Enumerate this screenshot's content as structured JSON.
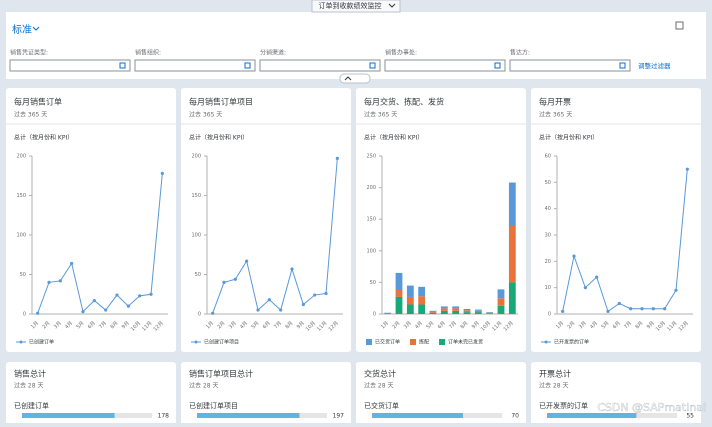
{
  "header": {
    "title": "订单到收款绩效监控"
  },
  "filter_bar": {
    "variant": "标准",
    "fields": [
      "销售凭证类型:",
      "销售组织:",
      "分销渠道:",
      "销售办事处:",
      "售达方:"
    ],
    "adapt_link": "调整过滤器"
  },
  "cards": [
    {
      "title": "每月销售订单",
      "subtitle": "过去 365 天",
      "chart": {
        "type": "line",
        "axis_title": "总计（按月份和 KPI）",
        "categories": [
          "1月",
          "2月",
          "3月",
          "4月",
          "5月",
          "6月",
          "7月",
          "8月",
          "9月",
          "10月",
          "11月",
          "12月"
        ],
        "series": [
          {
            "name": "已创建订单",
            "color": "#5899da",
            "values": [
              1,
              40,
              42,
              64,
              3,
              17,
              5,
              24,
              10,
              23,
              25,
              178
            ]
          }
        ],
        "ylim": [
          0,
          200
        ],
        "yticks": [
          0,
          50,
          100,
          150,
          200
        ]
      }
    },
    {
      "title": "每月销售订单项目",
      "subtitle": "过去 365 天",
      "chart": {
        "type": "line",
        "axis_title": "总计（按月份和 KPI）",
        "categories": [
          "1月",
          "2月",
          "3月",
          "4月",
          "5月",
          "6月",
          "7月",
          "8月",
          "9月",
          "10月",
          "11月",
          "12月"
        ],
        "series": [
          {
            "name": "已创建订单项目",
            "color": "#5899da",
            "values": [
              1,
              40,
              44,
              67,
              5,
              18,
              5,
              57,
              12,
              24,
              26,
              197
            ]
          }
        ],
        "ylim": [
          0,
          200
        ],
        "yticks": [
          0,
          50,
          100,
          150,
          200
        ]
      }
    },
    {
      "title": "每月交货、拣配、发货",
      "subtitle": "过去 365 天",
      "chart": {
        "type": "stacked_bar",
        "axis_title": "总计（按月份和 KPI）",
        "categories": [
          "1月",
          "2月",
          "3月",
          "4月",
          "5月",
          "6月",
          "7月",
          "8月",
          "9月",
          "10月",
          "11月",
          "12月"
        ],
        "series": [
          {
            "name": "订单未完已发货",
            "color": "#19a979",
            "values": [
              1,
              27,
              15,
              15,
              2,
              5,
              5,
              3,
              3,
              1,
              13,
              50
            ]
          },
          {
            "name": "拣配",
            "color": "#e8743b",
            "values": [
              0,
              11,
              12,
              13,
              2,
              4,
              4,
              3,
              2,
              1,
              12,
              90
            ]
          },
          {
            "name": "已交货订单",
            "color": "#5899da",
            "values": [
              1,
              27,
              18,
              15,
              1,
              3,
              3,
              2,
              2,
              1,
              14,
              68
            ]
          }
        ],
        "ylim": [
          0,
          250
        ],
        "yticks": [
          0,
          50,
          100,
          150,
          200,
          250
        ]
      }
    },
    {
      "title": "每月开票",
      "subtitle": "过去 365 天",
      "chart": {
        "type": "line",
        "axis_title": "总计（按月份和 KPI）",
        "categories": [
          "1月",
          "2月",
          "3月",
          "4月",
          "5月",
          "6月",
          "7月",
          "8月",
          "9月",
          "10月",
          "11月",
          "12月"
        ],
        "series": [
          {
            "name": "已开发票的订单",
            "color": "#5899da",
            "values": [
              1,
              22,
              10,
              14,
              1,
              4,
              2,
              2,
              2,
              2,
              9,
              55
            ]
          }
        ],
        "ylim": [
          0,
          60
        ],
        "yticks": [
          0,
          10,
          20,
          30,
          40,
          50,
          60
        ]
      }
    }
  ],
  "kpis": [
    {
      "title": "销售总计",
      "subtitle": "过去 28 天",
      "label": "已创建订单",
      "value": 178,
      "xlim": [
        0,
        250
      ]
    },
    {
      "title": "销售订单项目总计",
      "subtitle": "过去 28 天",
      "label": "已创建订单项目",
      "value": 197,
      "xlim": [
        0,
        250
      ]
    },
    {
      "title": "交货总计",
      "subtitle": "过去 28 天",
      "label": "已交货订单",
      "value": 70,
      "xlim": [
        0,
        100
      ]
    },
    {
      "title": "开票总计",
      "subtitle": "过去 28 天",
      "label": "已开发票的订单",
      "value": 55,
      "xlim": [
        0,
        80
      ]
    }
  ],
  "watermark": "CSDN @SAPmatinal"
}
